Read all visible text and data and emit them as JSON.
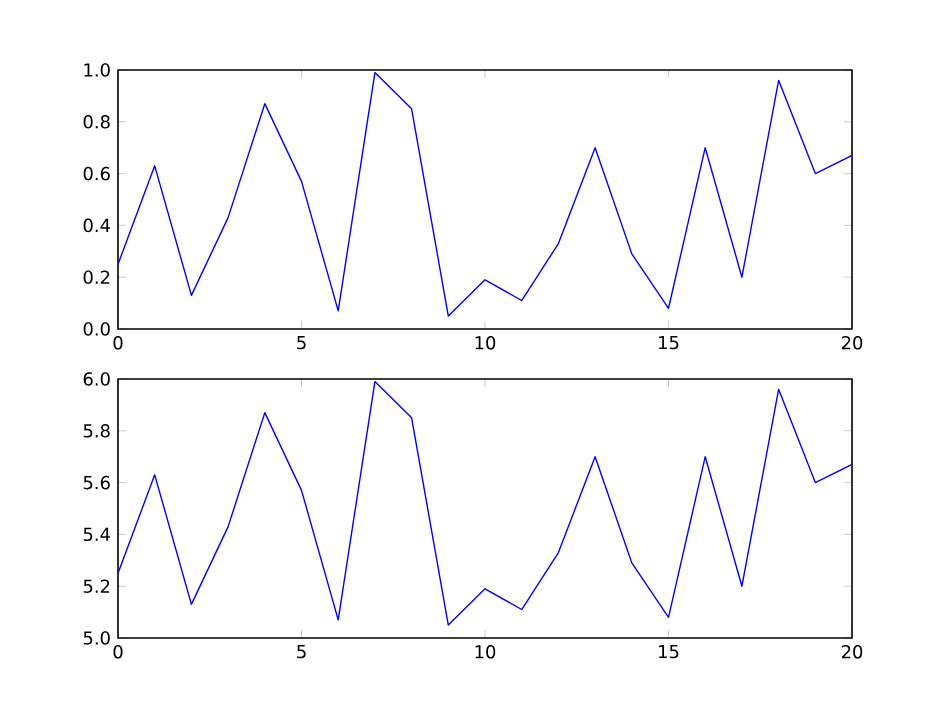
{
  "chart_data": [
    {
      "type": "line",
      "x": [
        0,
        1,
        2,
        3,
        4,
        5,
        6,
        7,
        8,
        9,
        10,
        11,
        12,
        13,
        14,
        15,
        16,
        17,
        18,
        19,
        20
      ],
      "series": [
        {
          "color": "#0000ff",
          "values": [
            0.25,
            0.63,
            0.13,
            0.43,
            0.87,
            0.57,
            0.07,
            0.99,
            0.85,
            0.05,
            0.19,
            0.11,
            0.33,
            0.7,
            0.29,
            0.08,
            0.7,
            0.2,
            0.96,
            0.6,
            0.67
          ]
        }
      ],
      "xlim": [
        0,
        20
      ],
      "ylim": [
        0,
        1
      ],
      "xticks": [
        0,
        5,
        10,
        15,
        20
      ],
      "yticks": [
        {
          "value": 0,
          "label": "0.0"
        },
        0.2,
        0.4,
        0.6,
        0.8,
        {
          "value": 1,
          "label": "1.0"
        }
      ]
    },
    {
      "type": "line",
      "x": [
        0,
        1,
        2,
        3,
        4,
        5,
        6,
        7,
        8,
        9,
        10,
        11,
        12,
        13,
        14,
        15,
        16,
        17,
        18,
        19,
        20
      ],
      "series": [
        {
          "color": "#0000ff",
          "values": [
            5.25,
            5.63,
            5.13,
            5.43,
            5.87,
            5.57,
            5.07,
            5.99,
            5.85,
            5.05,
            5.19,
            5.11,
            5.33,
            5.7,
            5.29,
            5.08,
            5.7,
            5.2,
            5.96,
            5.6,
            5.67
          ]
        }
      ],
      "xlim": [
        0,
        20
      ],
      "ylim": [
        5,
        6
      ],
      "xticks": [
        0,
        5,
        10,
        15,
        20
      ],
      "yticks": [
        {
          "value": 5,
          "label": "5.0"
        },
        5.2,
        5.4,
        5.6,
        5.8,
        {
          "value": 6,
          "label": "6.0"
        }
      ]
    }
  ]
}
